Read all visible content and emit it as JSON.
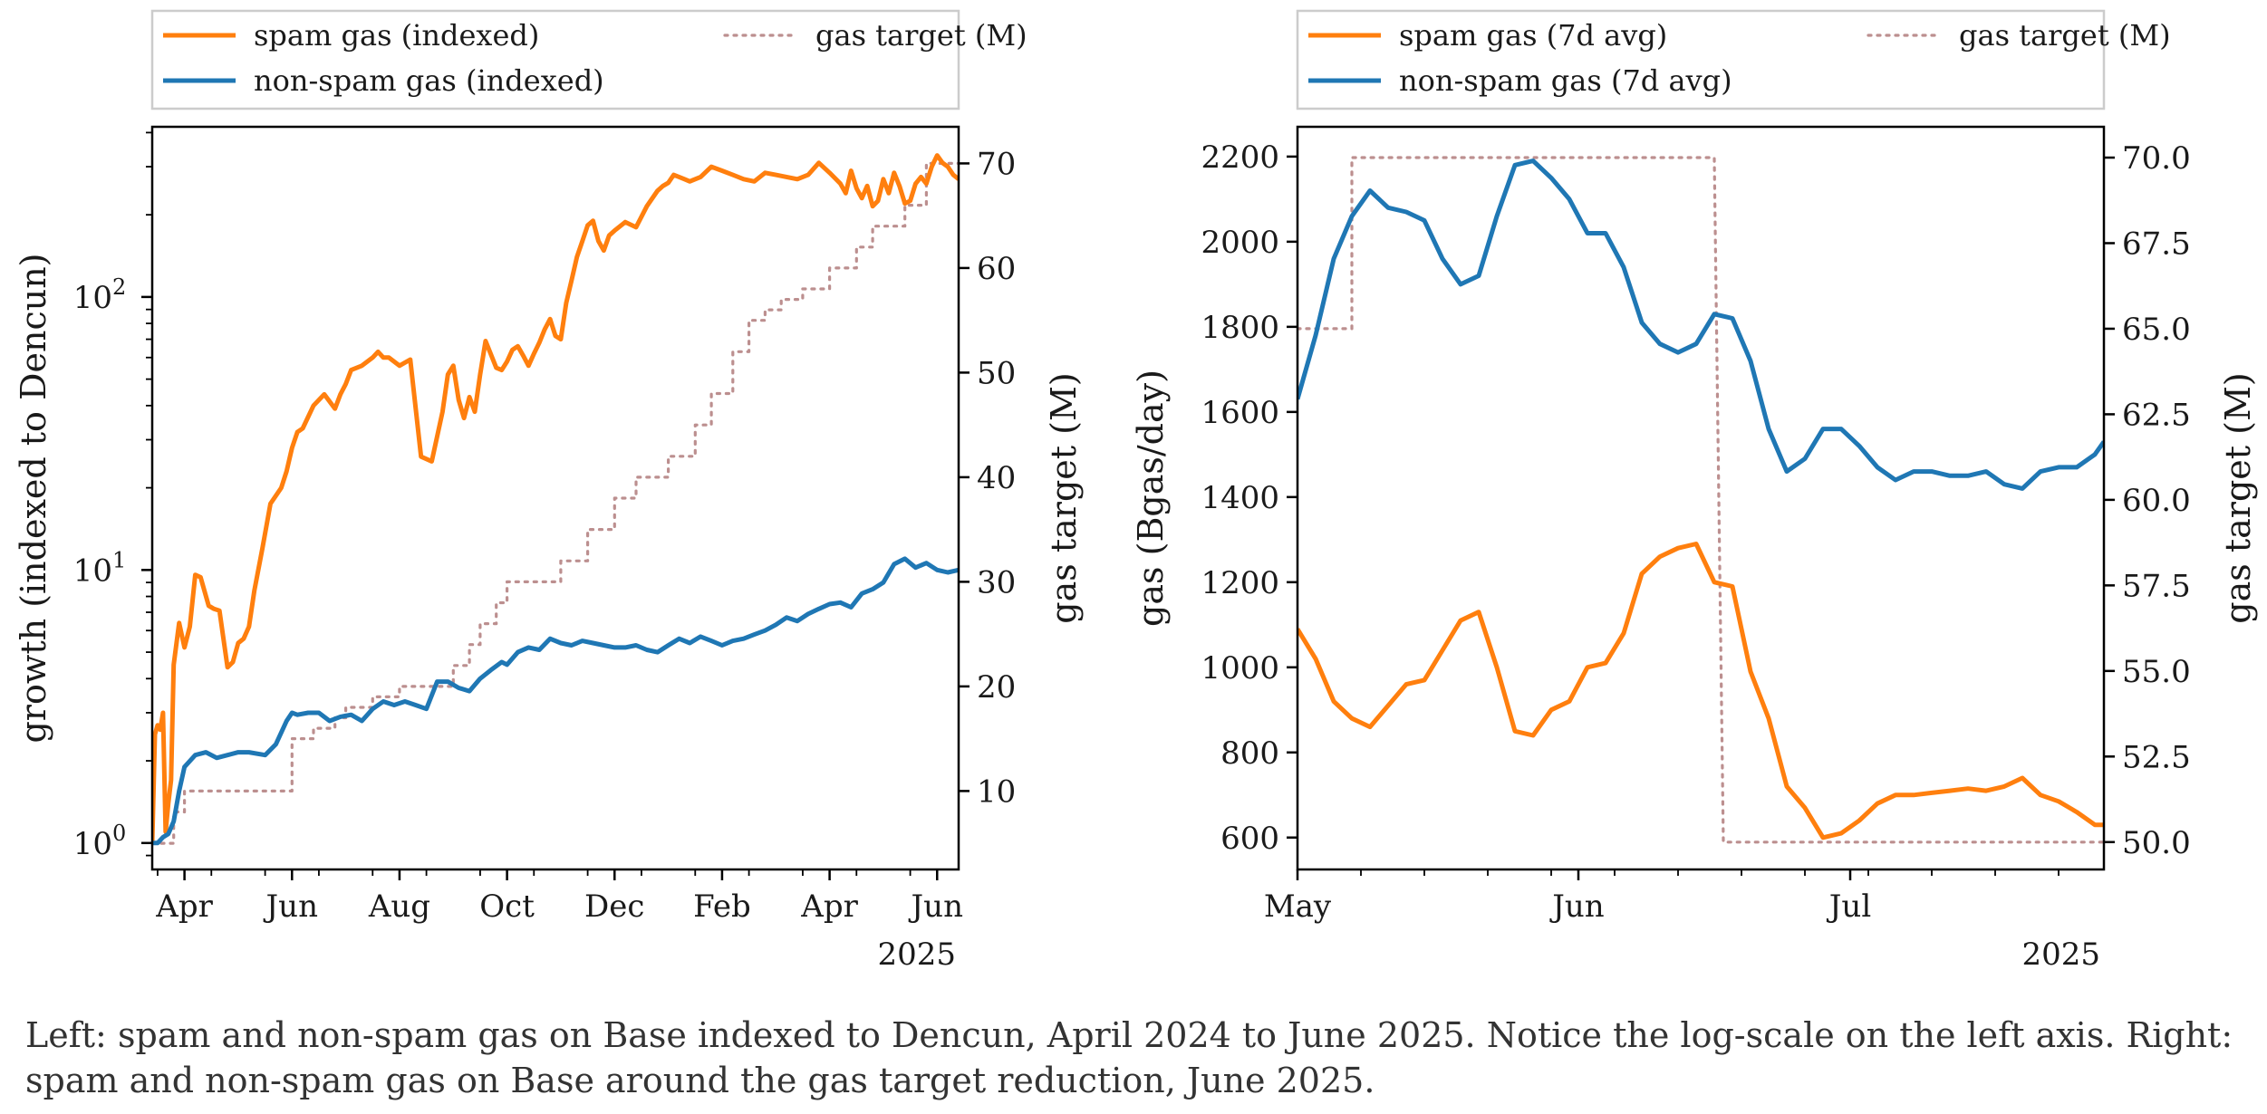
{
  "caption": "Left: spam and non-spam gas on Base indexed to Dencun, April 2024 to June 2025. Notice the log-scale on the left axis. Right: spam and non-spam gas on Base around the gas target reduction, June 2025.",
  "colors": {
    "spam": "#ff7f0e",
    "nonspam": "#1f77b4",
    "target": "#bc8f8f",
    "axis": "#000000"
  },
  "chart_data": [
    {
      "type": "line",
      "title": "",
      "xlabel": "",
      "ylabel": "growth (indexed to Dencun)",
      "ylabel_right": "gas target (M)",
      "yscale": "log",
      "ylim": [
        0.8,
        420
      ],
      "ylim_right": [
        2.5,
        73.5
      ],
      "xlim": [
        -0.6,
        14.4
      ],
      "x_unit": "months since 2024-04-01",
      "x_ticks": [
        {
          "x": 0,
          "label": "Apr"
        },
        {
          "x": 2,
          "label": "Jun"
        },
        {
          "x": 4,
          "label": "Aug"
        },
        {
          "x": 6,
          "label": "Oct"
        },
        {
          "x": 8,
          "label": "Dec"
        },
        {
          "x": 10,
          "label": "Feb"
        },
        {
          "x": 12,
          "label": "Apr"
        },
        {
          "x": 14,
          "label": "Jun"
        }
      ],
      "x_year_label": "2025",
      "y_ticks": [
        {
          "v": 1,
          "base": "10",
          "exp": "0"
        },
        {
          "v": 10,
          "base": "10",
          "exp": "1"
        },
        {
          "v": 100,
          "base": "10",
          "exp": "2"
        }
      ],
      "y_ticks_right": [
        10,
        20,
        30,
        40,
        50,
        60,
        70
      ],
      "legend": {
        "position": "top",
        "entries": [
          {
            "label": "spam gas (indexed)",
            "style": "spam"
          },
          {
            "label": "non-spam gas (indexed)",
            "style": "nonspam"
          },
          {
            "label": "gas target (M)",
            "style": "target"
          }
        ]
      },
      "series": [
        {
          "name": "spam gas (indexed)",
          "axis": "left",
          "style": "spam",
          "x": [
            -0.6,
            -0.55,
            -0.5,
            -0.45,
            -0.4,
            -0.35,
            -0.3,
            -0.25,
            -0.2,
            -0.1,
            0.0,
            0.1,
            0.2,
            0.3,
            0.45,
            0.55,
            0.65,
            0.8,
            0.9,
            1.0,
            1.1,
            1.2,
            1.3,
            1.45,
            1.6,
            1.8,
            1.9,
            2.0,
            2.1,
            2.2,
            2.4,
            2.6,
            2.8,
            2.9,
            3.0,
            3.1,
            3.3,
            3.5,
            3.6,
            3.7,
            3.8,
            4.0,
            4.2,
            4.4,
            4.6,
            4.8,
            4.9,
            5.0,
            5.1,
            5.2,
            5.3,
            5.4,
            5.5,
            5.6,
            5.8,
            5.9,
            6.0,
            6.1,
            6.2,
            6.3,
            6.4,
            6.5,
            6.6,
            6.7,
            6.8,
            6.9,
            7.0,
            7.1,
            7.2,
            7.3,
            7.4,
            7.5,
            7.6,
            7.7,
            7.8,
            7.9,
            8.0,
            8.2,
            8.4,
            8.6,
            8.8,
            8.9,
            9.0,
            9.1,
            9.2,
            9.3,
            9.4,
            9.6,
            9.8,
            10.0,
            10.2,
            10.4,
            10.6,
            10.8,
            11.0,
            11.2,
            11.4,
            11.6,
            11.8,
            12.0,
            12.2,
            12.3,
            12.4,
            12.5,
            12.6,
            12.7,
            12.8,
            12.9,
            13.0,
            13.1,
            13.2,
            13.3,
            13.4,
            13.5,
            13.6,
            13.7,
            13.8,
            13.9,
            14.0,
            14.1,
            14.2,
            14.3,
            14.4
          ],
          "values": [
            1.0,
            2.5,
            2.7,
            2.6,
            3.0,
            1.1,
            1.4,
            1.7,
            4.5,
            6.4,
            5.2,
            6.2,
            9.6,
            9.4,
            7.4,
            7.2,
            7.1,
            4.4,
            4.6,
            5.4,
            5.6,
            6.2,
            8.4,
            12.0,
            17.5,
            20.0,
            23.0,
            28.0,
            32.0,
            33.0,
            40.0,
            44.0,
            39.0,
            44.0,
            48.0,
            54.0,
            56.0,
            60.0,
            63.0,
            60.0,
            60.0,
            56.0,
            59.0,
            26.0,
            25.0,
            38.0,
            52.0,
            56.0,
            42.0,
            36.0,
            43.0,
            38.0,
            52.0,
            69.0,
            55.0,
            54.0,
            58.0,
            64.0,
            66.0,
            61.0,
            56.0,
            62.0,
            68.0,
            76.0,
            83.0,
            72.0,
            70.0,
            95.0,
            115.0,
            140.0,
            160.0,
            183.0,
            190.0,
            160.0,
            148.0,
            168.0,
            175.0,
            188.0,
            180.0,
            215.0,
            245.0,
            255.0,
            262.0,
            280.0,
            275.0,
            270.0,
            265.0,
            275.0,
            300.0,
            290.0,
            280.0,
            270.0,
            265.0,
            285.0,
            280.0,
            275.0,
            270.0,
            280.0,
            310.0,
            285.0,
            260.0,
            240.0,
            290.0,
            250.0,
            230.0,
            255.0,
            215.0,
            225.0,
            270.0,
            240.0,
            285.0,
            255.0,
            220.0,
            225.0,
            260.0,
            275.0,
            260.0,
            300.0,
            330.0,
            310.0,
            300.0,
            280.0,
            270.0
          ],
          "note": "approximate x positions, see xlim"
        },
        {
          "name": "non-spam gas (indexed)",
          "axis": "left",
          "style": "nonspam",
          "x": [
            -0.6,
            -0.5,
            -0.4,
            -0.3,
            -0.2,
            -0.1,
            0.0,
            0.2,
            0.4,
            0.6,
            0.8,
            1.0,
            1.2,
            1.5,
            1.7,
            1.9,
            2.0,
            2.1,
            2.3,
            2.5,
            2.7,
            2.9,
            3.1,
            3.3,
            3.5,
            3.7,
            3.9,
            4.1,
            4.3,
            4.5,
            4.7,
            4.9,
            5.1,
            5.3,
            5.5,
            5.7,
            5.9,
            6.0,
            6.2,
            6.4,
            6.6,
            6.8,
            7.0,
            7.2,
            7.4,
            7.6,
            7.8,
            8.0,
            8.2,
            8.4,
            8.6,
            8.8,
            9.0,
            9.2,
            9.4,
            9.6,
            9.8,
            10.0,
            10.2,
            10.4,
            10.6,
            10.8,
            11.0,
            11.2,
            11.4,
            11.6,
            11.8,
            12.0,
            12.2,
            12.4,
            12.6,
            12.8,
            13.0,
            13.2,
            13.4,
            13.6,
            13.8,
            14.0,
            14.2,
            14.4
          ],
          "values": [
            1.0,
            1.0,
            1.05,
            1.08,
            1.2,
            1.55,
            1.9,
            2.1,
            2.15,
            2.05,
            2.1,
            2.15,
            2.15,
            2.1,
            2.3,
            2.8,
            3.0,
            2.95,
            3.0,
            3.0,
            2.8,
            2.9,
            2.95,
            2.8,
            3.1,
            3.3,
            3.2,
            3.3,
            3.2,
            3.1,
            3.9,
            3.9,
            3.7,
            3.6,
            4.0,
            4.3,
            4.6,
            4.5,
            5.0,
            5.2,
            5.1,
            5.6,
            5.4,
            5.3,
            5.5,
            5.4,
            5.3,
            5.2,
            5.2,
            5.3,
            5.1,
            5.0,
            5.3,
            5.6,
            5.4,
            5.7,
            5.5,
            5.3,
            5.5,
            5.6,
            5.8,
            6.0,
            6.3,
            6.7,
            6.5,
            6.9,
            7.2,
            7.5,
            7.6,
            7.3,
            8.2,
            8.5,
            9.0,
            10.5,
            11.0,
            10.2,
            10.6,
            10.0,
            9.8,
            10.0
          ]
        },
        {
          "name": "gas target (M)",
          "axis": "right",
          "style": "target",
          "x": [
            -0.6,
            -0.2,
            -0.2,
            0.0,
            0.0,
            1.2,
            1.2,
            1.6,
            1.6,
            2.0,
            2.0,
            2.4,
            2.4,
            2.8,
            2.8,
            3.0,
            3.0,
            3.5,
            3.5,
            4.0,
            4.0,
            5.0,
            5.0,
            5.3,
            5.3,
            5.5,
            5.5,
            5.8,
            5.8,
            6.0,
            6.0,
            6.2,
            6.2,
            6.6,
            6.6,
            7.0,
            7.0,
            7.5,
            7.5,
            8.0,
            8.0,
            8.4,
            8.4,
            8.7,
            8.7,
            9.0,
            9.0,
            9.5,
            9.5,
            9.8,
            9.8,
            10.2,
            10.2,
            10.5,
            10.5,
            10.8,
            10.8,
            11.1,
            11.1,
            11.5,
            11.5,
            12.0,
            12.0,
            12.5,
            12.5,
            12.8,
            12.8,
            13.4,
            13.4,
            13.8,
            13.8,
            14.4
          ],
          "values": [
            5,
            5,
            8,
            8,
            10,
            10,
            10,
            10,
            10,
            10,
            15,
            15,
            16,
            16,
            17,
            17,
            18,
            18,
            19,
            19,
            20,
            20,
            22,
            22,
            24,
            24,
            26,
            26,
            28,
            28,
            30,
            30,
            30,
            30,
            30,
            30,
            32,
            32,
            35,
            35,
            38,
            38,
            40,
            40,
            40,
            40,
            42,
            42,
            45,
            45,
            48,
            48,
            52,
            52,
            55,
            55,
            56,
            56,
            57,
            57,
            58,
            58,
            60,
            60,
            62,
            62,
            64,
            64,
            66,
            66,
            70,
            70
          ]
        }
      ]
    },
    {
      "type": "line",
      "title": "",
      "xlabel": "",
      "ylabel": "gas (Bgas/day)",
      "ylabel_right": "gas target (M)",
      "yscale": "linear",
      "ylim": [
        525,
        2270
      ],
      "ylim_right": [
        49.2,
        70.9
      ],
      "xlim": [
        0,
        89
      ],
      "x_unit": "days since 2025-05-01",
      "x_ticks": [
        {
          "x": 0,
          "label": "May"
        },
        {
          "x": 31,
          "label": "Jun"
        },
        {
          "x": 61,
          "label": "Jul"
        }
      ],
      "x_year_label": "2025",
      "y_ticks": [
        600,
        800,
        1000,
        1200,
        1400,
        1600,
        1800,
        2000,
        2200
      ],
      "y_ticks_right": [
        "50.0",
        "52.5",
        "55.0",
        "57.5",
        "60.0",
        "62.5",
        "65.0",
        "67.5",
        "70.0"
      ],
      "legend": {
        "position": "top",
        "entries": [
          {
            "label": "spam gas (7d avg)",
            "style": "spam"
          },
          {
            "label": "non-spam gas (7d avg)",
            "style": "nonspam"
          },
          {
            "label": "gas target (M)",
            "style": "target"
          }
        ]
      },
      "series": [
        {
          "name": "spam gas (7d avg)",
          "axis": "left",
          "style": "spam",
          "x": [
            0,
            2,
            4,
            6,
            8,
            10,
            12,
            14,
            16,
            18,
            20,
            22,
            24,
            26,
            28,
            30,
            32,
            34,
            36,
            38,
            40,
            42,
            44,
            46,
            48,
            50,
            52,
            54,
            56,
            58,
            60,
            62,
            64,
            66,
            68,
            70,
            72,
            74,
            76,
            78,
            80,
            82,
            84,
            86,
            88,
            89
          ],
          "values": [
            1090,
            1020,
            920,
            880,
            860,
            910,
            960,
            970,
            1040,
            1110,
            1130,
            1000,
            850,
            840,
            900,
            920,
            1000,
            1010,
            1080,
            1220,
            1260,
            1280,
            1290,
            1200,
            1190,
            990,
            880,
            720,
            670,
            600,
            610,
            640,
            680,
            700,
            700,
            705,
            710,
            715,
            710,
            720,
            740,
            700,
            685,
            660,
            630,
            630
          ]
        },
        {
          "name": "non-spam gas (7d avg)",
          "axis": "left",
          "style": "nonspam",
          "x": [
            0,
            2,
            4,
            6,
            8,
            10,
            12,
            14,
            16,
            18,
            20,
            22,
            24,
            26,
            28,
            30,
            32,
            34,
            36,
            38,
            40,
            42,
            44,
            46,
            48,
            50,
            52,
            54,
            56,
            58,
            60,
            62,
            64,
            66,
            68,
            70,
            72,
            74,
            76,
            78,
            80,
            82,
            84,
            86,
            88,
            89
          ],
          "values": [
            1630,
            1780,
            1960,
            2060,
            2120,
            2080,
            2070,
            2050,
            1960,
            1900,
            1920,
            2060,
            2180,
            2190,
            2150,
            2100,
            2020,
            2020,
            1940,
            1810,
            1760,
            1740,
            1760,
            1830,
            1820,
            1720,
            1560,
            1460,
            1490,
            1560,
            1560,
            1520,
            1470,
            1440,
            1460,
            1460,
            1450,
            1450,
            1460,
            1430,
            1420,
            1460,
            1470,
            1470,
            1500,
            1530
          ]
        },
        {
          "name": "gas target (M)",
          "axis": "right",
          "style": "target",
          "x": [
            0,
            6,
            6,
            46,
            46,
            47,
            47,
            89
          ],
          "values": [
            65,
            65,
            70,
            70,
            70,
            50,
            50,
            50
          ]
        }
      ]
    }
  ]
}
